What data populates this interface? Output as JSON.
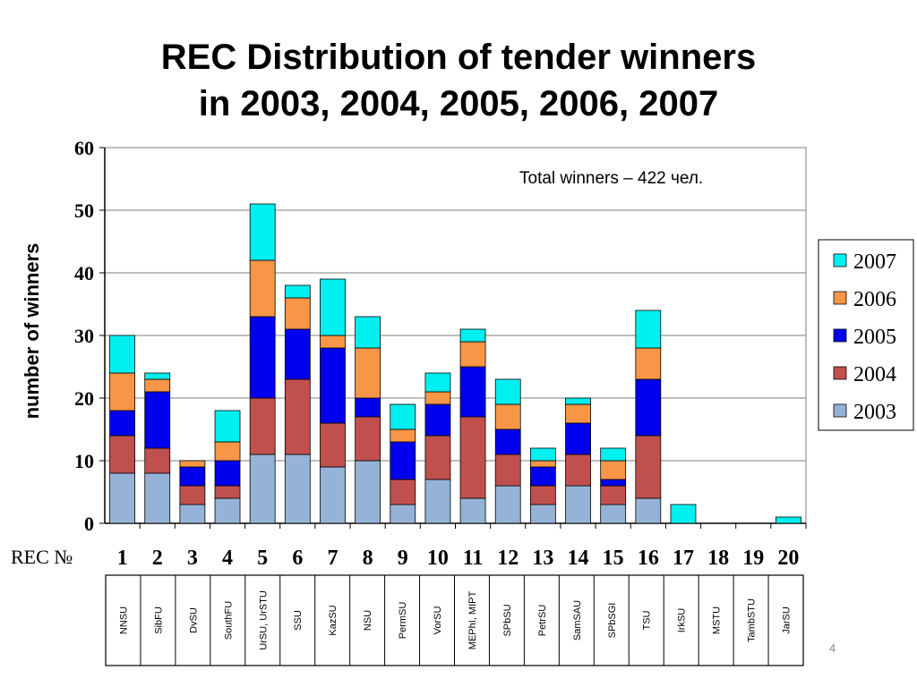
{
  "slide": {
    "title_line1": "REC Distribution of tender winners",
    "title_line2": "in 2003, 2004, 2005, 2006, 2007",
    "page_number": "4"
  },
  "chart_data": {
    "type": "bar",
    "stacked": true,
    "title": "",
    "xlabel": "REC №",
    "ylabel": "number of winners",
    "ylim": [
      0,
      60
    ],
    "yticks": [
      0,
      10,
      20,
      30,
      40,
      50,
      60
    ],
    "grid": true,
    "annotation": "Total winners – 422 чел.",
    "legend_position": "right",
    "categories": [
      "1",
      "2",
      "3",
      "4",
      "5",
      "6",
      "7",
      "8",
      "9",
      "10",
      "11",
      "12",
      "13",
      "14",
      "15",
      "16",
      "17",
      "18",
      "19",
      "20"
    ],
    "university_labels": [
      "NNSU",
      "SibFU",
      "DvSU",
      "SouthFU",
      "UrSU, UrSTU",
      "SSU",
      "KazSU",
      "NSU",
      "PermSU",
      "VorSU",
      "MEPhI, MIPT",
      "SPbSU",
      "PetrSU",
      "SamSAU",
      "SPbSGI",
      "TSU",
      "IrkSU",
      "MSTU",
      "TambSTU",
      "JarSU"
    ],
    "series": [
      {
        "name": "2003",
        "color": "#95b3d7",
        "values": [
          8,
          8,
          3,
          4,
          11,
          11,
          9,
          10,
          3,
          7,
          4,
          6,
          3,
          6,
          3,
          4,
          0,
          0,
          0,
          0
        ]
      },
      {
        "name": "2004",
        "color": "#c0504d",
        "values": [
          6,
          4,
          3,
          2,
          9,
          12,
          7,
          7,
          4,
          7,
          13,
          5,
          3,
          5,
          3,
          10,
          0,
          0,
          0,
          0
        ]
      },
      {
        "name": "2005",
        "color": "#0000ee",
        "values": [
          4,
          9,
          3,
          4,
          13,
          8,
          12,
          3,
          6,
          5,
          8,
          4,
          3,
          5,
          1,
          9,
          0,
          0,
          0,
          0
        ]
      },
      {
        "name": "2006",
        "color": "#f79646",
        "values": [
          6,
          2,
          1,
          3,
          9,
          5,
          2,
          8,
          2,
          2,
          4,
          4,
          1,
          3,
          3,
          5,
          0,
          0,
          0,
          0
        ]
      },
      {
        "name": "2007",
        "color": "#00f0f0",
        "values": [
          6,
          1,
          0,
          5,
          9,
          2,
          9,
          5,
          4,
          3,
          2,
          4,
          2,
          1,
          2,
          6,
          3,
          0,
          0,
          1
        ]
      }
    ]
  }
}
